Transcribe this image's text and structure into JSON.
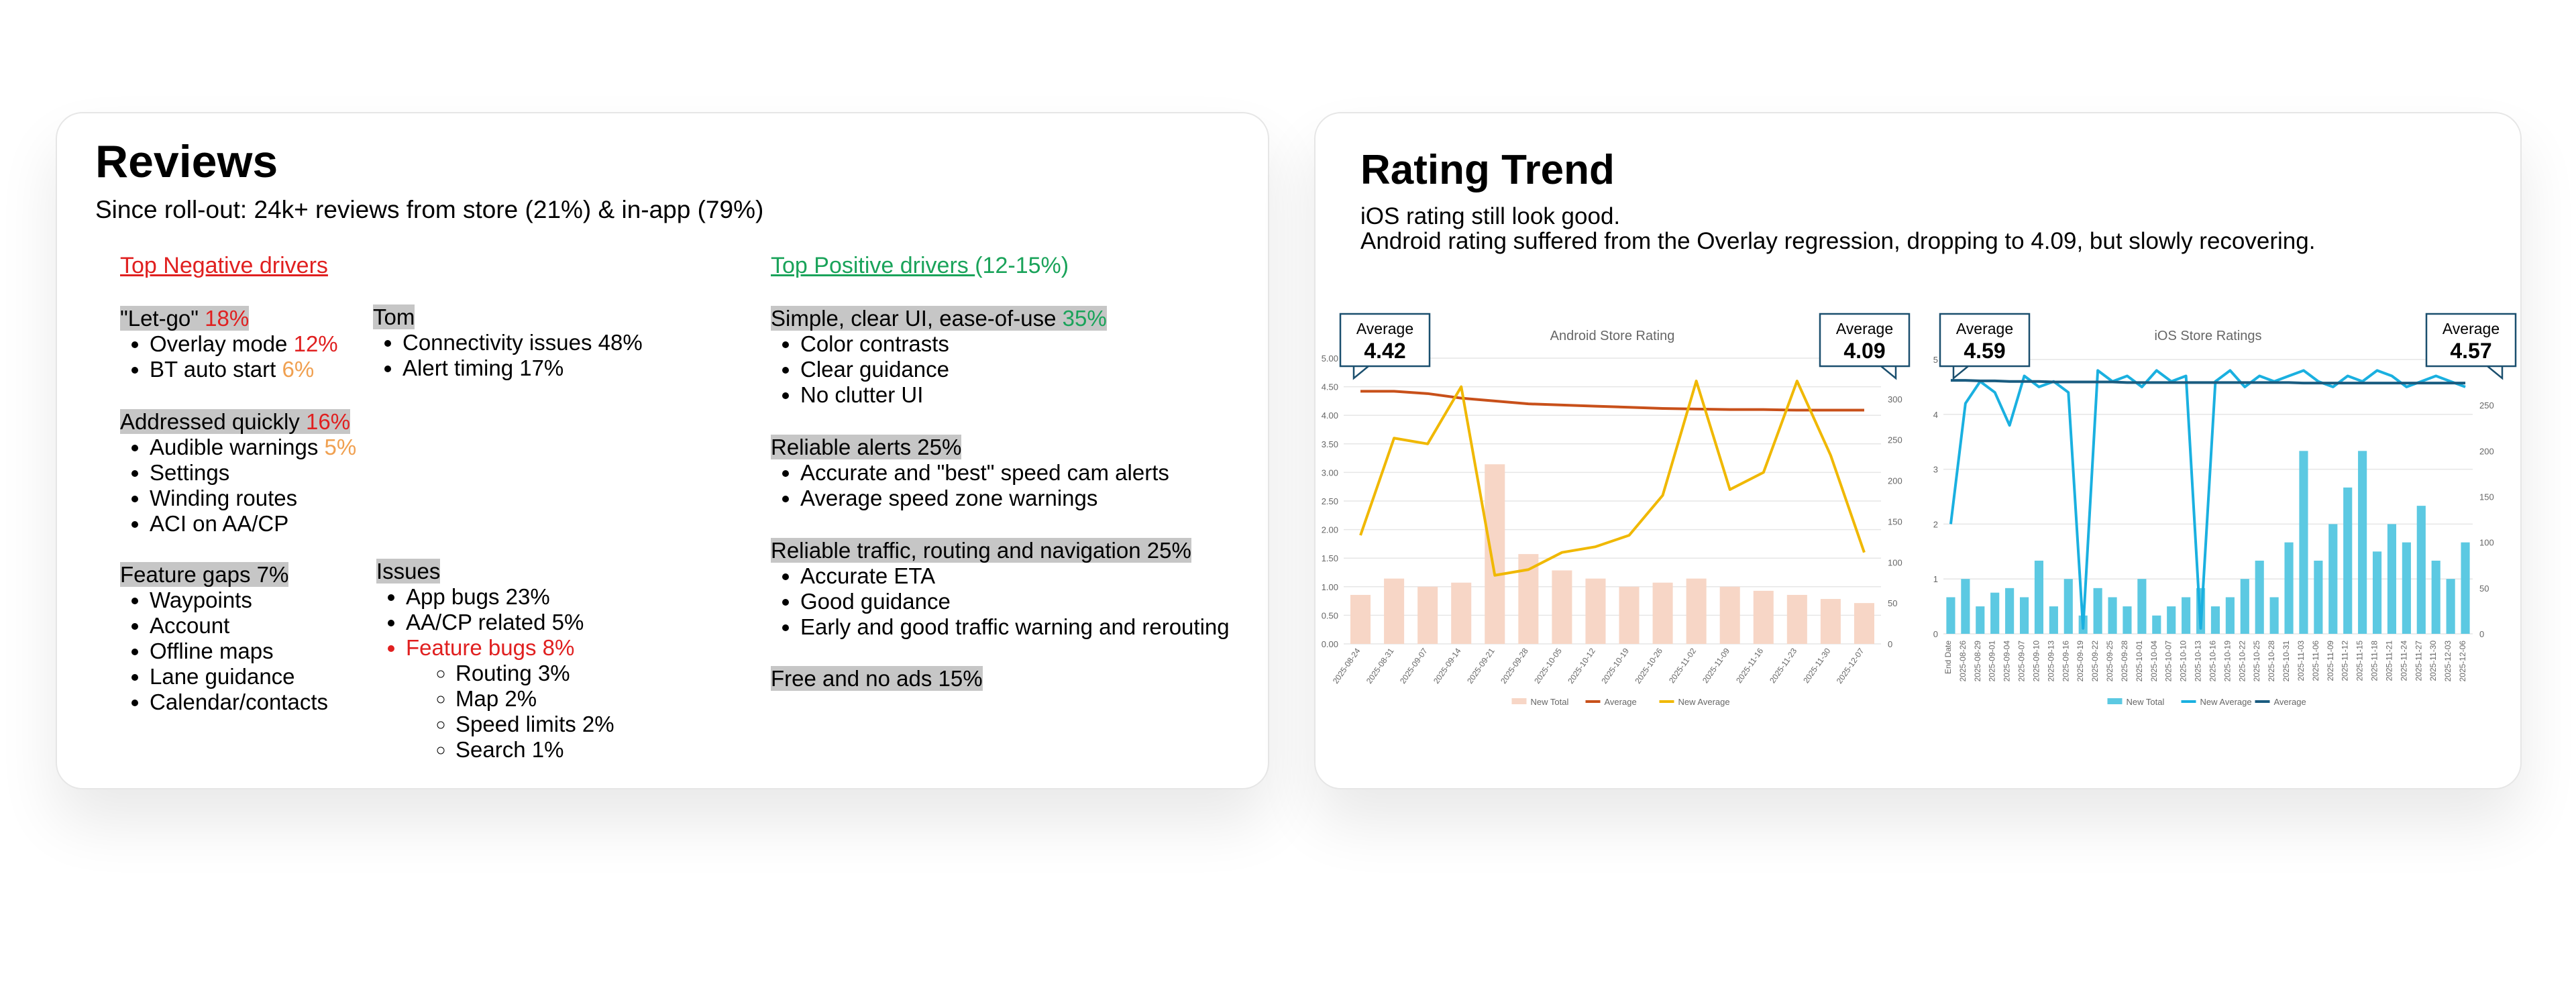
{
  "reviews": {
    "title": "Reviews",
    "subtitle": "Since roll-out: 24k+ reviews from store (21%) & in-app (79%)",
    "negative_heading": {
      "text": "Top Negative drivers",
      "color": "#e02020"
    },
    "positive_heading": {
      "segments": [
        "Top Positive drivers ",
        "(12-15%)"
      ],
      "color": "#1aa35a"
    },
    "groups": [
      {
        "heading": [
          "\"Let-go\" ",
          {
            "text": "18%",
            "color": "#e02020"
          }
        ],
        "items": [
          [
            "Overlay mode ",
            {
              "text": "12%",
              "color": "#e02020"
            }
          ],
          [
            "BT auto start ",
            {
              "text": "6%",
              "color": "#f0a050"
            }
          ]
        ]
      },
      {
        "heading": [
          "Addressed quickly ",
          {
            "text": "16%",
            "color": "#e02020"
          }
        ],
        "items": [
          [
            "Audible warnings ",
            {
              "text": "5%",
              "color": "#f0a050"
            }
          ],
          [
            "Settings"
          ],
          [
            "Winding routes"
          ],
          [
            "ACI on AA/CP"
          ]
        ]
      },
      {
        "heading": [
          "Feature gaps 7%"
        ],
        "items": [
          [
            "Waypoints"
          ],
          [
            "Account"
          ],
          [
            "Offline maps"
          ],
          [
            "Lane guidance"
          ],
          [
            "Calendar/contacts"
          ]
        ]
      },
      {
        "heading": [
          "Tom"
        ],
        "items": [
          [
            "Connectivity issues 48%"
          ],
          [
            "Alert timing 17%"
          ]
        ]
      },
      {
        "heading": [
          "Issues"
        ],
        "items": [
          [
            "App bugs 23%"
          ],
          [
            "AA/CP related 5%"
          ],
          [
            {
              "text": "Feature bugs 8%",
              "color": "#e02020"
            }
          ]
        ],
        "sub_items": [
          "Routing 3%",
          "Map 2%",
          "Speed limits 2%",
          "Search 1%"
        ]
      },
      {
        "heading": [
          "Simple, clear UI, ease-of-use ",
          {
            "text": "35%",
            "color": "#1aa35a"
          }
        ],
        "items": [
          [
            "Color contrasts"
          ],
          [
            "Clear guidance"
          ],
          [
            "No clutter UI"
          ]
        ]
      },
      {
        "heading": [
          "Reliable alerts 25%"
        ],
        "items": [
          [
            "Accurate and \"best\" speed cam alerts"
          ],
          [
            "Average speed zone warnings"
          ]
        ]
      },
      {
        "heading": [
          "Reliable traffic, routing and navigation 25%"
        ],
        "items": [
          [
            "Accurate ETA"
          ],
          [
            "Good guidance"
          ],
          [
            "Early and good traffic warning and rerouting"
          ]
        ]
      },
      {
        "heading": [
          "Free and no ads 15%"
        ],
        "items": []
      }
    ]
  },
  "rating_trend": {
    "title": "Rating Trend",
    "subtitle": [
      "iOS rating still look good.",
      "Android rating suffered from the Overlay regression, dropping to 4.09, but slowly recovering."
    ]
  },
  "chart_data": [
    {
      "type": "combo",
      "title": "Android Store Rating",
      "categories": [
        "2025-08-24",
        "2025-08-31",
        "2025-09-07",
        "2025-09-14",
        "2025-09-21",
        "2025-09-28",
        "2025-10-05",
        "2025-10-12",
        "2025-10-19",
        "2025-10-26",
        "2025-11-02",
        "2025-11-09",
        "2025-11-16",
        "2025-11-23",
        "2025-11-30",
        "2025-12-07"
      ],
      "ylim": [
        0,
        5
      ],
      "yticks": [
        {
          "value": 0,
          "label": "0.00"
        },
        {
          "value": 0.5,
          "label": "0.50"
        },
        {
          "value": 1,
          "label": "1.00"
        },
        {
          "value": 1.5,
          "label": "1.50"
        },
        {
          "value": 2,
          "label": "2.00"
        },
        {
          "value": 2.5,
          "label": "2.50"
        },
        {
          "value": 3,
          "label": "3.00"
        },
        {
          "value": 3.5,
          "label": "3.50"
        },
        {
          "value": 4,
          "label": "4.00"
        },
        {
          "value": 4.5,
          "label": "4.50"
        },
        {
          "value": 5,
          "label": "5.00"
        }
      ],
      "y2lim": [
        0,
        350
      ],
      "y2ticks": [
        0,
        50,
        100,
        150,
        200,
        250,
        300
      ],
      "grid": true,
      "x_rotation": -55,
      "series": [
        {
          "name": "New Total",
          "kind": "bar",
          "axis": "y2",
          "color": "#f7d6c6",
          "values": [
            60,
            80,
            70,
            75,
            220,
            110,
            90,
            80,
            70,
            75,
            80,
            70,
            65,
            60,
            55,
            50
          ]
        },
        {
          "name": "Average",
          "kind": "line",
          "color": "#c8501a",
          "values": [
            4.42,
            4.42,
            4.38,
            4.3,
            4.25,
            4.2,
            4.18,
            4.16,
            4.14,
            4.12,
            4.11,
            4.1,
            4.1,
            4.09,
            4.09,
            4.09
          ]
        },
        {
          "name": "New Average",
          "kind": "line",
          "color": "#f0b800",
          "values": [
            1.9,
            3.6,
            3.5,
            4.5,
            1.2,
            1.3,
            1.6,
            1.7,
            1.9,
            2.6,
            4.6,
            2.7,
            3.0,
            4.6,
            3.3,
            1.6
          ]
        }
      ],
      "annotations": [
        {
          "label": "Average",
          "value": "4.42"
        },
        {
          "label": "Average",
          "value": "4.09"
        }
      ]
    },
    {
      "type": "combo",
      "title": "iOS Store Ratings",
      "categories": [
        "End Date",
        "2025-08-26",
        "2025-08-29",
        "2025-09-01",
        "2025-09-04",
        "2025-09-07",
        "2025-09-10",
        "2025-09-13",
        "2025-09-16",
        "2025-09-19",
        "2025-09-22",
        "2025-09-25",
        "2025-09-28",
        "2025-10-01",
        "2025-10-04",
        "2025-10-07",
        "2025-10-10",
        "2025-10-13",
        "2025-10-16",
        "2025-10-19",
        "2025-10-22",
        "2025-10-25",
        "2025-10-28",
        "2025-10-31",
        "2025-11-03",
        "2025-11-06",
        "2025-11-09",
        "2025-11-12",
        "2025-11-15",
        "2025-11-18",
        "2025-11-21",
        "2025-11-24",
        "2025-11-27",
        "2025-11-30",
        "2025-12-03",
        "2025-12-06"
      ],
      "ylim": [
        0,
        5
      ],
      "yticks": [
        0,
        1,
        2,
        3,
        4,
        5
      ],
      "y2lim": [
        0,
        300
      ],
      "y2ticks": [
        0,
        50,
        100,
        150,
        200,
        250
      ],
      "grid": true,
      "x_rotation": -90,
      "series": [
        {
          "name": "New Total",
          "kind": "bar",
          "axis": "y2",
          "color": "#5cc9e2",
          "values": [
            40,
            60,
            30,
            45,
            50,
            40,
            80,
            30,
            60,
            20,
            50,
            40,
            30,
            60,
            20,
            30,
            40,
            50,
            30,
            40,
            60,
            80,
            40,
            100,
            200,
            80,
            120,
            160,
            200,
            90,
            120,
            100,
            140,
            80,
            60,
            100
          ]
        },
        {
          "name": "New Average",
          "kind": "line",
          "color": "#1ab0e0",
          "values": [
            2.0,
            4.2,
            4.6,
            4.4,
            3.8,
            4.7,
            4.5,
            4.6,
            4.4,
            0.1,
            4.8,
            4.6,
            4.7,
            4.5,
            4.8,
            4.6,
            4.7,
            0.1,
            4.6,
            4.8,
            4.5,
            4.7,
            4.6,
            4.7,
            4.8,
            4.6,
            4.5,
            4.7,
            4.6,
            4.8,
            4.7,
            4.5,
            4.6,
            4.7,
            4.6,
            4.5
          ]
        },
        {
          "name": "Average",
          "kind": "line",
          "color": "#1a5c80",
          "values": [
            4.62,
            4.62,
            4.61,
            4.61,
            4.6,
            4.6,
            4.6,
            4.59,
            4.59,
            4.59,
            4.59,
            4.59,
            4.58,
            4.58,
            4.58,
            4.58,
            4.58,
            4.58,
            4.58,
            4.58,
            4.58,
            4.58,
            4.58,
            4.58,
            4.57,
            4.57,
            4.57,
            4.57,
            4.57,
            4.57,
            4.57,
            4.57,
            4.57,
            4.57,
            4.57,
            4.57
          ]
        }
      ],
      "annotations": [
        {
          "label": "Average",
          "value": "4.59"
        },
        {
          "label": "Average",
          "value": "4.57"
        }
      ]
    }
  ]
}
